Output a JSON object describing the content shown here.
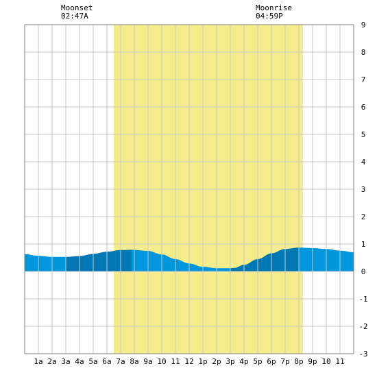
{
  "chart_data": {
    "type": "area",
    "x_categories": [
      "1a",
      "2a",
      "3a",
      "4a",
      "5a",
      "6a",
      "7a",
      "8a",
      "9a",
      "10",
      "11",
      "12",
      "1p",
      "2p",
      "3p",
      "4p",
      "5p",
      "6p",
      "7p",
      "8p",
      "9p",
      "10",
      "11"
    ],
    "x_range_hours": [
      0,
      24
    ],
    "ylim": [
      -3,
      9
    ],
    "y_ticks": [
      -3,
      -2,
      -1,
      0,
      1,
      2,
      3,
      4,
      5,
      6,
      7,
      8,
      9
    ],
    "grid": true,
    "daylight_hours": [
      6.5,
      20.3
    ],
    "tide_hours": [
      0,
      1,
      2,
      3,
      4,
      5,
      6,
      7,
      7.8,
      9,
      10,
      11,
      12,
      13,
      14,
      15,
      15.3,
      16,
      17,
      18,
      19,
      20,
      21,
      22,
      23,
      24
    ],
    "tide_heights": [
      0.63,
      0.57,
      0.53,
      0.53,
      0.56,
      0.64,
      0.72,
      0.78,
      0.79,
      0.75,
      0.62,
      0.45,
      0.29,
      0.17,
      0.12,
      0.12,
      0.13,
      0.24,
      0.45,
      0.66,
      0.82,
      0.87,
      0.85,
      0.82,
      0.76,
      0.7
    ],
    "annotations": [
      {
        "label": "Moonset",
        "time": "02:47A"
      },
      {
        "label": "Moonrise",
        "time": "04:59P"
      }
    ],
    "colors": {
      "daylight": "#f5ec8c",
      "tide_light": "#0096dc",
      "tide_dark": "#0078b4",
      "grid": "#c8c8c8",
      "frame": "#808080"
    }
  }
}
